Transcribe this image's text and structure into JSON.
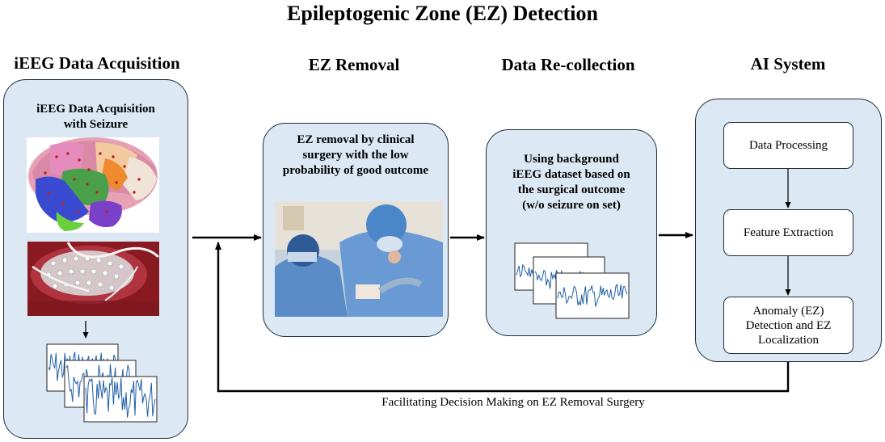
{
  "title": "Epileptogenic Zone (EZ) Detection",
  "columns": {
    "acquisition": "iEEG Data Acquisition",
    "removal": "EZ Removal",
    "recollection": "Data Re-collection",
    "ai": "AI System"
  },
  "panels": {
    "acquisition_text": [
      "iEEG Data Acquisition",
      "with Seizure"
    ],
    "removal_text": [
      "EZ removal by clinical",
      "surgery with the low",
      "probability of good outcome"
    ],
    "recollection_text": [
      "Using background",
      "iEEG dataset based on",
      "the surgical outcome",
      "(w/o seizure on set)"
    ]
  },
  "ai_steps": {
    "processing": "Data Processing",
    "features": "Feature Extraction",
    "anomaly": [
      "Anomaly (EZ)",
      "Detection and EZ",
      "Localization"
    ]
  },
  "feedback_caption": "Facilitating Decision Making on EZ Removal Surgery",
  "colors": {
    "panel_fill": "#dce8f4",
    "panel_border": "#1f2d3d",
    "signal": "#1f5fa8",
    "arrow": "#000000"
  }
}
